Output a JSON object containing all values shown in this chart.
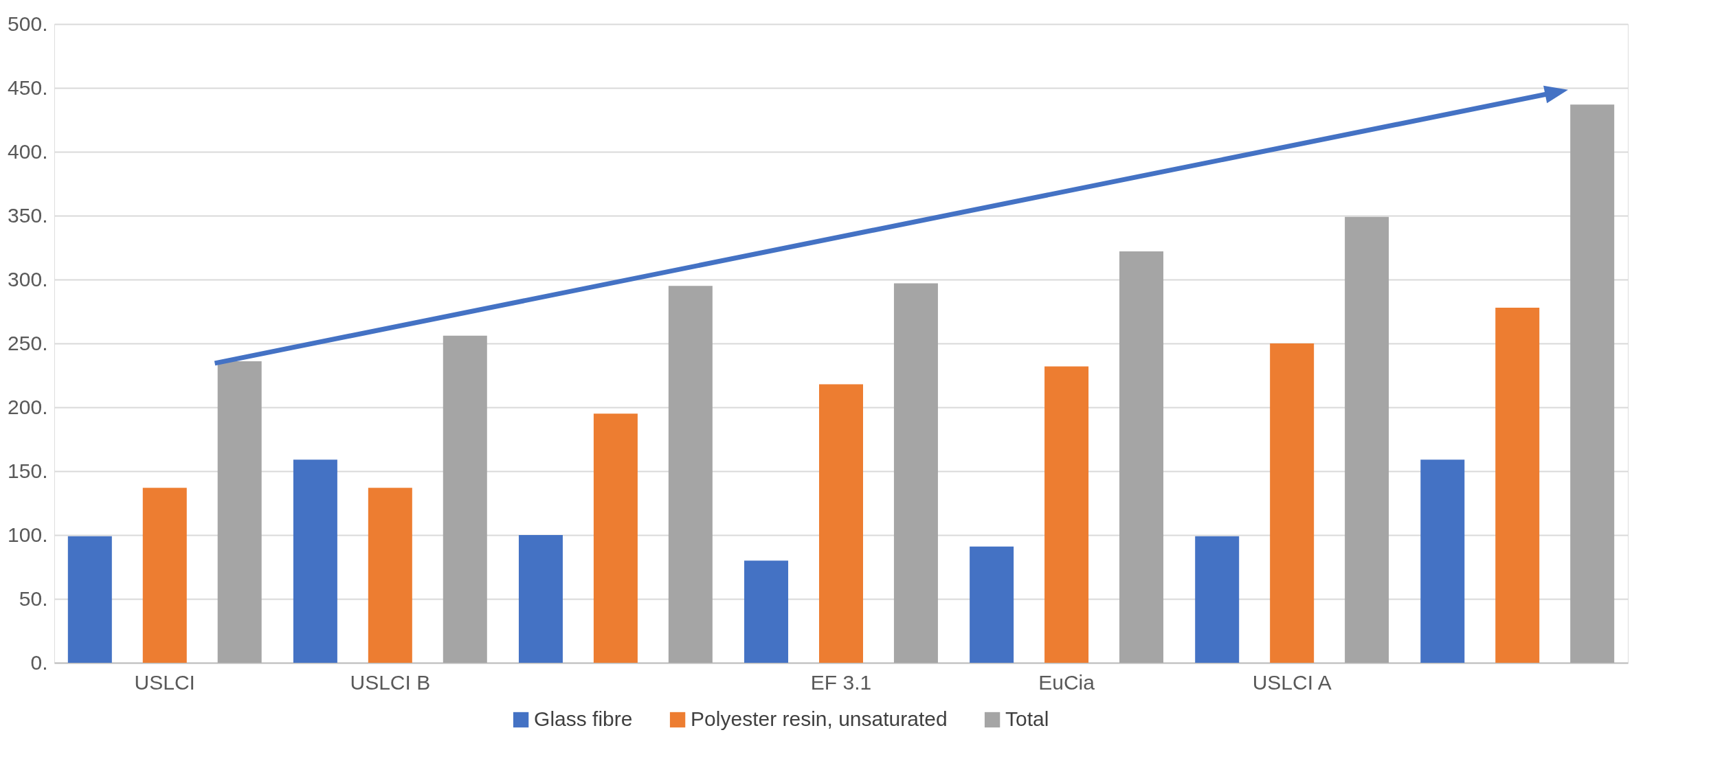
{
  "chart_data": {
    "type": "bar",
    "categories": [
      "USLCI",
      "USLCI B",
      null,
      "EF 3.1",
      "EuCia",
      "USLCI A",
      null
    ],
    "series": [
      {
        "name": "Glass fibre",
        "color": "#4472c4",
        "values": [
          99,
          159,
          100,
          80,
          91,
          99,
          159
        ]
      },
      {
        "name": "Polyester resin, unsaturated",
        "color": "#ed7d31",
        "values": [
          137,
          137,
          195,
          218,
          232,
          250,
          278
        ]
      },
      {
        "name": "Total",
        "color": "#a5a5a5",
        "values": [
          236,
          256,
          295,
          297,
          322,
          349,
          437
        ]
      }
    ],
    "ylim": [
      0,
      500
    ],
    "yticks": [
      {
        "value": 0,
        "label": "0."
      },
      {
        "value": 50,
        "label": "50."
      },
      {
        "value": 100,
        "label": "100."
      },
      {
        "value": 150,
        "label": "150."
      },
      {
        "value": 200,
        "label": "200."
      },
      {
        "value": 250,
        "label": "250."
      },
      {
        "value": 300,
        "label": "300."
      },
      {
        "value": 350,
        "label": "350."
      },
      {
        "value": 400,
        "label": "400."
      },
      {
        "value": 450,
        "label": "450."
      },
      {
        "value": 500,
        "label": "500."
      }
    ],
    "grid": "y",
    "legend": "bottom"
  }
}
